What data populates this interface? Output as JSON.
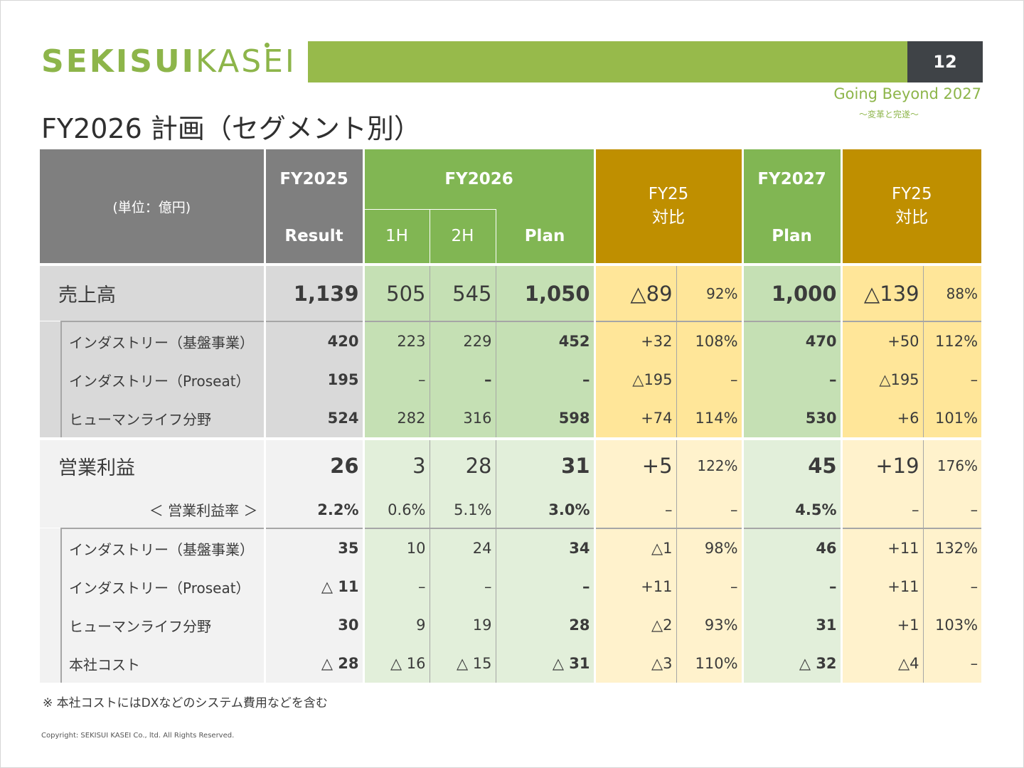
{
  "header": {
    "logo_bold": "SEKISUI",
    "logo_thin": "KASEI",
    "page_number": "12",
    "tagline": "Going Beyond 2027",
    "tagline_sub": "～変革と完遂～",
    "title": "FY2026 計画（セグメント別）"
  },
  "colors": {
    "brand_green": "#8db54a",
    "header_gray": "#7f7f7f",
    "header_green": "#81b653",
    "header_gold": "#bf8f00"
  },
  "table": {
    "unit": "(単位：億円)",
    "fy2025": "FY2025",
    "result": "Result",
    "fy2026": "FY2026",
    "h1": "1H",
    "h2": "2H",
    "plan": "Plan",
    "fy25_compare_1": "FY25",
    "fy25_compare_2": "対比",
    "fy2027": "FY2027",
    "plan_2027": "Plan",
    "fy25_compare_b1": "FY25",
    "fy25_compare_b2": "対比",
    "sales": {
      "label": "売上高",
      "values": [
        "1,139",
        "505",
        "545",
        "1,050",
        "△89",
        "92%",
        "1,000",
        "△139",
        "88%"
      ],
      "rows": [
        {
          "label": "インダストリー（基盤事業）",
          "values": [
            "420",
            "223",
            "229",
            "452",
            "+32",
            "108%",
            "470",
            "+50",
            "112%"
          ]
        },
        {
          "label": "インダストリー（Proseat）",
          "values": [
            "195",
            "–",
            "–",
            "–",
            "△195",
            "–",
            "–",
            "△195",
            "–"
          ]
        },
        {
          "label": "ヒューマンライフ分野",
          "values": [
            "524",
            "282",
            "316",
            "598",
            "+74",
            "114%",
            "530",
            "+6",
            "101%"
          ]
        }
      ]
    },
    "op_income": {
      "label": "営業利益",
      "values": [
        "26",
        "3",
        "28",
        "31",
        "+5",
        "122%",
        "45",
        "+19",
        "176%"
      ],
      "rate_label": "＜ 営業利益率 ＞",
      "rate_values": [
        "2.2%",
        "0.6%",
        "5.1%",
        "3.0%",
        "–",
        "–",
        "4.5%",
        "–",
        "–"
      ],
      "rows": [
        {
          "label": "インダストリー（基盤事業）",
          "values": [
            "35",
            "10",
            "24",
            "34",
            "△1",
            "98%",
            "46",
            "+11",
            "132%"
          ]
        },
        {
          "label": "インダストリー（Proseat）",
          "values": [
            "△ 11",
            "–",
            "–",
            "–",
            "+11",
            "–",
            "–",
            "+11",
            "–"
          ]
        },
        {
          "label": "ヒューマンライフ分野",
          "values": [
            "30",
            "9",
            "19",
            "28",
            "△2",
            "93%",
            "31",
            "+1",
            "103%"
          ]
        },
        {
          "label": "本社コスト",
          "values": [
            "△ 28",
            "△ 16",
            "△ 15",
            "△ 31",
            "△3",
            "110%",
            "△ 32",
            "△4",
            "–"
          ]
        }
      ]
    }
  },
  "footer": {
    "note": "※ 本社コストにはDXなどのシステム費用などを含む",
    "copyright": "Copyright: SEKISUI KASEI Co., ltd. All Rights Reserved."
  }
}
